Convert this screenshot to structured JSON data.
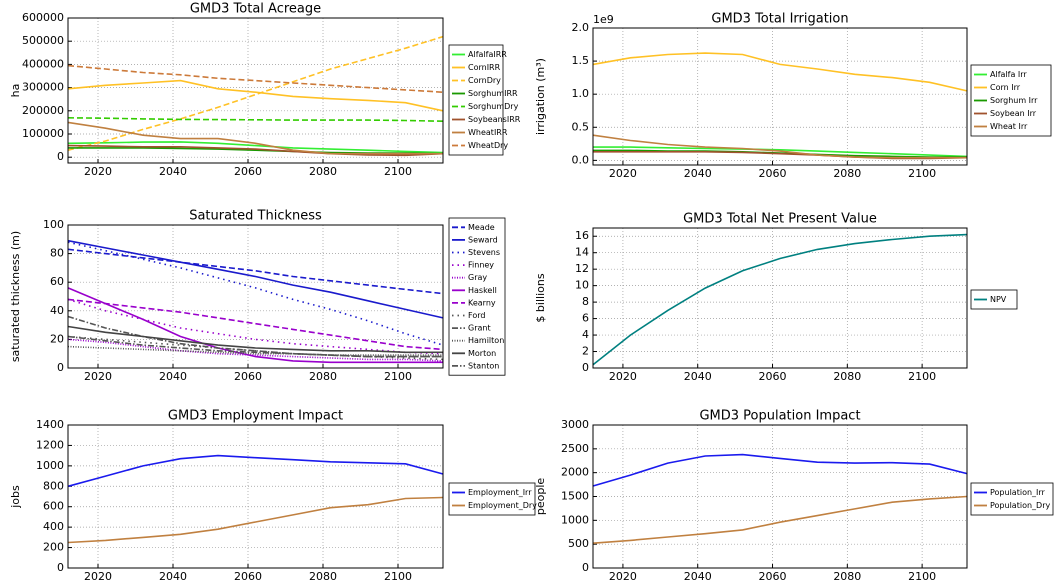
{
  "chart_data": [
    {
      "type": "line",
      "title": "GMD3 Total Acreage",
      "y_label": "ha",
      "grid": true,
      "legend": "outside right",
      "x": [
        2012,
        2022,
        2032,
        2042,
        2052,
        2062,
        2072,
        2082,
        2092,
        2102,
        2112
      ],
      "xlim": [
        2012,
        2112
      ],
      "xticks": [
        2020,
        2040,
        2060,
        2080,
        2100
      ],
      "ylim": [
        -25000,
        600000
      ],
      "yticks": [
        0,
        100000,
        200000,
        300000,
        400000,
        500000,
        600000
      ],
      "series": [
        {
          "name": "AlfalfaIRR",
          "color": "#33ee33",
          "dash": "solid",
          "values": [
            60000,
            62000,
            65000,
            66000,
            60000,
            50000,
            40000,
            35000,
            30000,
            25000,
            20000
          ]
        },
        {
          "name": "CornIRR",
          "color": "#ffc125",
          "dash": "solid",
          "values": [
            295000,
            310000,
            320000,
            330000,
            295000,
            280000,
            262000,
            252000,
            245000,
            235000,
            200000
          ]
        },
        {
          "name": "CornDry",
          "color": "#ffc125",
          "dash": "dashed",
          "values": [
            30000,
            70000,
            120000,
            165000,
            215000,
            270000,
            325000,
            380000,
            425000,
            470000,
            520000
          ]
        },
        {
          "name": "SorghumIRR",
          "color": "#1a9900",
          "dash": "solid",
          "values": [
            40000,
            40000,
            40000,
            38000,
            35000,
            30000,
            25000,
            20000,
            18000,
            18000,
            15000
          ]
        },
        {
          "name": "SorghumDry",
          "color": "#33cc00",
          "dash": "dashed",
          "values": [
            170000,
            168000,
            165000,
            163000,
            162000,
            161000,
            160000,
            160000,
            160000,
            158000,
            155000
          ]
        },
        {
          "name": "SoybeansIRR",
          "color": "#a0522d",
          "dash": "solid",
          "values": [
            50000,
            48000,
            45000,
            45000,
            40000,
            35000,
            25000,
            15000,
            10000,
            8000,
            15000
          ]
        },
        {
          "name": "WheatIRR",
          "color": "#c08040",
          "dash": "solid",
          "values": [
            150000,
            125000,
            95000,
            80000,
            80000,
            60000,
            30000,
            15000,
            15000,
            15000,
            15000
          ]
        },
        {
          "name": "WheatDry",
          "color": "#cc7a3a",
          "dash": "dashed",
          "values": [
            395000,
            380000,
            365000,
            355000,
            340000,
            330000,
            320000,
            310000,
            300000,
            290000,
            280000
          ]
        }
      ]
    },
    {
      "type": "line",
      "title": "GMD3 Total Irrigation",
      "y_label": "irrigation (m³)",
      "y_offset_label": "1e9",
      "grid": true,
      "legend": "outside right",
      "x": [
        2012,
        2022,
        2032,
        2042,
        2052,
        2062,
        2072,
        2082,
        2092,
        2102,
        2112
      ],
      "xlim": [
        2012,
        2112
      ],
      "xticks": [
        2020,
        2040,
        2060,
        2080,
        2100
      ],
      "ylim": [
        -0.07,
        2.0
      ],
      "yticks": [
        {
          "value": 0,
          "label": "0.0"
        },
        0.5,
        {
          "value": 1,
          "label": "1.0"
        },
        1.5,
        {
          "value": 2,
          "label": "2.0"
        }
      ],
      "series": [
        {
          "name": "Alfalfa Irr",
          "color": "#33ee33",
          "dash": "solid",
          "values": [
            0.2,
            0.2,
            0.19,
            0.18,
            0.17,
            0.16,
            0.14,
            0.12,
            0.1,
            0.08,
            0.06
          ]
        },
        {
          "name": "Corn Irr",
          "color": "#ffc125",
          "dash": "solid",
          "values": [
            1.45,
            1.55,
            1.6,
            1.62,
            1.6,
            1.45,
            1.38,
            1.3,
            1.25,
            1.18,
            1.05
          ]
        },
        {
          "name": "Sorghum Irr",
          "color": "#1a9900",
          "dash": "solid",
          "values": [
            0.15,
            0.15,
            0.14,
            0.14,
            0.13,
            0.11,
            0.09,
            0.07,
            0.06,
            0.05,
            0.05
          ]
        },
        {
          "name": "Soybean Irr",
          "color": "#a0522d",
          "dash": "solid",
          "values": [
            0.13,
            0.13,
            0.13,
            0.13,
            0.12,
            0.1,
            0.08,
            0.05,
            0.03,
            0.03,
            0.04
          ]
        },
        {
          "name": "Wheat Irr",
          "color": "#c08040",
          "dash": "solid",
          "values": [
            0.38,
            0.3,
            0.24,
            0.2,
            0.18,
            0.14,
            0.08,
            0.05,
            0.04,
            0.04,
            0.04
          ]
        }
      ]
    },
    {
      "type": "line",
      "title": "Saturated Thickness",
      "y_label": "saturated thickness (m)",
      "grid": true,
      "legend": "outside right",
      "x": [
        2012,
        2022,
        2032,
        2042,
        2052,
        2062,
        2072,
        2082,
        2092,
        2102,
        2112
      ],
      "xlim": [
        2012,
        2112
      ],
      "xticks": [
        2020,
        2040,
        2060,
        2080,
        2100
      ],
      "ylim": [
        0,
        100
      ],
      "yticks": [
        0,
        20,
        40,
        60,
        80,
        100
      ],
      "series": [
        {
          "name": "Meade",
          "color": "#1a1acc",
          "dash": "dashed",
          "values": [
            83,
            80,
            77,
            74,
            71,
            68,
            64,
            61,
            58,
            55,
            52
          ]
        },
        {
          "name": "Seward",
          "color": "#1a1acc",
          "dash": "solid",
          "values": [
            89,
            84,
            79,
            74,
            69,
            64,
            58,
            53,
            47,
            41,
            35
          ]
        },
        {
          "name": "Stevens",
          "color": "#1a1acc",
          "dash": "dotted",
          "values": [
            88,
            82,
            76,
            70,
            63,
            56,
            48,
            41,
            33,
            24,
            16
          ]
        },
        {
          "name": "Finney",
          "color": "#9900cc",
          "dash": "dotted",
          "values": [
            48,
            40,
            34,
            28,
            24,
            20,
            17,
            15,
            13,
            11,
            10
          ]
        },
        {
          "name": "Gray",
          "color": "#9900cc",
          "dash": "fine",
          "values": [
            20,
            18,
            15,
            12,
            10,
            9,
            8,
            7,
            6,
            6,
            5
          ]
        },
        {
          "name": "Haskell",
          "color": "#9900cc",
          "dash": "solid",
          "values": [
            56,
            45,
            34,
            22,
            14,
            8,
            5,
            4,
            4,
            4,
            4
          ]
        },
        {
          "name": "Kearny",
          "color": "#9900cc",
          "dash": "dashed",
          "values": [
            48,
            45,
            42,
            39,
            35,
            31,
            27,
            23,
            19,
            15,
            13
          ]
        },
        {
          "name": "Ford",
          "color": "#555555",
          "dash": "dotted",
          "values": [
            22,
            20,
            18,
            16,
            14,
            12,
            10,
            9,
            8,
            7,
            6
          ]
        },
        {
          "name": "Grant",
          "color": "#555555",
          "dash": "dashdot",
          "values": [
            36,
            28,
            22,
            17,
            14,
            12,
            10,
            9,
            8,
            8,
            8
          ]
        },
        {
          "name": "Hamilton",
          "color": "#555555",
          "dash": "fine",
          "values": [
            15,
            14,
            13,
            12,
            11,
            10,
            10,
            9,
            9,
            9,
            9
          ]
        },
        {
          "name": "Morton",
          "color": "#444444",
          "dash": "solid",
          "values": [
            29,
            25,
            22,
            19,
            16,
            14,
            13,
            12,
            12,
            11,
            11
          ]
        },
        {
          "name": "Stanton",
          "color": "#555555",
          "dash": "dashdot",
          "values": [
            22,
            19,
            16,
            14,
            12,
            11,
            10,
            9,
            8,
            8,
            8
          ]
        }
      ]
    },
    {
      "type": "line",
      "title": "GMD3 Total Net Present Value",
      "y_label": "$ billions",
      "grid": true,
      "legend": "outside right",
      "x": [
        2012,
        2022,
        2032,
        2042,
        2052,
        2062,
        2072,
        2082,
        2092,
        2102,
        2112
      ],
      "xlim": [
        2012,
        2112
      ],
      "xticks": [
        2020,
        2040,
        2060,
        2080,
        2100
      ],
      "ylim": [
        0,
        17
      ],
      "yticks": [
        0,
        2,
        4,
        6,
        8,
        10,
        12,
        14,
        16
      ],
      "series": [
        {
          "name": "NPV",
          "color": "#008080",
          "dash": "solid",
          "values": [
            0.4,
            4,
            7,
            9.7,
            11.8,
            13.3,
            14.4,
            15.1,
            15.6,
            16,
            16.2
          ]
        }
      ]
    },
    {
      "type": "line",
      "title": "GMD3 Employment Impact",
      "y_label": "jobs",
      "grid": true,
      "legend": "outside right",
      "x": [
        2012,
        2022,
        2032,
        2042,
        2052,
        2062,
        2072,
        2082,
        2092,
        2102,
        2112
      ],
      "xlim": [
        2012,
        2112
      ],
      "xticks": [
        2020,
        2040,
        2060,
        2080,
        2100
      ],
      "ylim": [
        0,
        1400
      ],
      "yticks": [
        0,
        200,
        400,
        600,
        800,
        1000,
        1200,
        1400
      ],
      "series": [
        {
          "name": "Employment_Irr",
          "color": "#1a1aee",
          "dash": "solid",
          "values": [
            800,
            900,
            1000,
            1070,
            1100,
            1080,
            1060,
            1040,
            1030,
            1020,
            920
          ]
        },
        {
          "name": "Employment_Dry",
          "color": "#c08040",
          "dash": "solid",
          "values": [
            250,
            270,
            300,
            330,
            380,
            450,
            520,
            590,
            620,
            680,
            690
          ]
        }
      ]
    },
    {
      "type": "line",
      "title": "GMD3 Population Impact",
      "y_label": "people",
      "grid": true,
      "legend": "outside right",
      "x": [
        2012,
        2022,
        2032,
        2042,
        2052,
        2062,
        2072,
        2082,
        2092,
        2102,
        2112
      ],
      "xlim": [
        2012,
        2112
      ],
      "xticks": [
        2020,
        2040,
        2060,
        2080,
        2100
      ],
      "ylim": [
        0,
        3000
      ],
      "yticks": [
        0,
        500,
        1000,
        1500,
        2000,
        2500,
        3000
      ],
      "series": [
        {
          "name": "Population_Irr",
          "color": "#1a1aee",
          "dash": "solid",
          "values": [
            1720,
            1950,
            2200,
            2350,
            2380,
            2300,
            2220,
            2200,
            2210,
            2180,
            1980
          ]
        },
        {
          "name": "Population_Dry",
          "color": "#c08040",
          "dash": "solid",
          "values": [
            520,
            580,
            650,
            720,
            800,
            960,
            1100,
            1240,
            1380,
            1450,
            1500
          ]
        }
      ]
    }
  ]
}
